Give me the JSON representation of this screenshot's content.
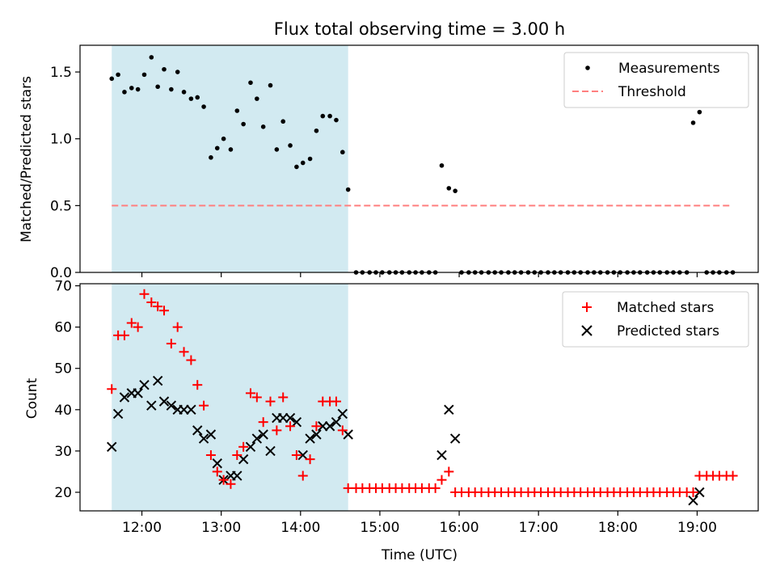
{
  "title": "Flux total observing time = 3.00 h",
  "colors": {
    "shade": "#add8e6",
    "threshold": "#ff7f7f",
    "matched": "#ff0000",
    "predicted": "#000000",
    "measurement": "#000000"
  },
  "chart_data": [
    {
      "type": "scatter",
      "ylabel": "Matched/Predicted stars",
      "xlim": [
        11.22,
        19.77
      ],
      "ylim": [
        0,
        1.7
      ],
      "yticks": [
        0.0,
        0.5,
        1.0,
        1.5
      ],
      "ytick_labels": [
        "0.0",
        "0.5",
        "1.0",
        "1.5"
      ],
      "shaded_span": [
        11.62,
        14.6
      ],
      "legend": {
        "placement": "upper right",
        "entries": [
          "Measurements",
          "Threshold"
        ]
      },
      "threshold": {
        "name": "Threshold",
        "y": 0.5,
        "x_range": [
          11.62,
          19.42
        ]
      },
      "series": [
        {
          "name": "Measurements",
          "points": [
            [
              11.62,
              1.45
            ],
            [
              11.7,
              1.48
            ],
            [
              11.78,
              1.35
            ],
            [
              11.87,
              1.38
            ],
            [
              11.95,
              1.37
            ],
            [
              12.03,
              1.48
            ],
            [
              12.12,
              1.61
            ],
            [
              12.2,
              1.39
            ],
            [
              12.28,
              1.52
            ],
            [
              12.37,
              1.37
            ],
            [
              12.45,
              1.5
            ],
            [
              12.53,
              1.35
            ],
            [
              12.62,
              1.3
            ],
            [
              12.7,
              1.31
            ],
            [
              12.78,
              1.24
            ],
            [
              12.87,
              0.86
            ],
            [
              12.95,
              0.93
            ],
            [
              13.03,
              1.0
            ],
            [
              13.12,
              0.92
            ],
            [
              13.2,
              1.21
            ],
            [
              13.28,
              1.11
            ],
            [
              13.37,
              1.42
            ],
            [
              13.45,
              1.3
            ],
            [
              13.53,
              1.09
            ],
            [
              13.62,
              1.4
            ],
            [
              13.7,
              0.92
            ],
            [
              13.78,
              1.13
            ],
            [
              13.87,
              0.95
            ],
            [
              13.95,
              0.79
            ],
            [
              14.03,
              0.82
            ],
            [
              14.12,
              0.85
            ],
            [
              14.2,
              1.06
            ],
            [
              14.28,
              1.17
            ],
            [
              14.37,
              1.17
            ],
            [
              14.45,
              1.14
            ],
            [
              14.53,
              0.9
            ],
            [
              14.6,
              0.62
            ],
            [
              14.7,
              0
            ],
            [
              14.78,
              0
            ],
            [
              14.87,
              0
            ],
            [
              14.95,
              0
            ],
            [
              15.03,
              0
            ],
            [
              15.12,
              0
            ],
            [
              15.2,
              0
            ],
            [
              15.28,
              0
            ],
            [
              15.37,
              0
            ],
            [
              15.45,
              0
            ],
            [
              15.53,
              0
            ],
            [
              15.62,
              0
            ],
            [
              15.7,
              0
            ],
            [
              15.78,
              0.8
            ],
            [
              15.87,
              0.63
            ],
            [
              15.95,
              0.61
            ],
            [
              16.03,
              0
            ],
            [
              16.12,
              0
            ],
            [
              16.2,
              0
            ],
            [
              16.28,
              0
            ],
            [
              16.37,
              0
            ],
            [
              16.45,
              0
            ],
            [
              16.53,
              0
            ],
            [
              16.62,
              0
            ],
            [
              16.7,
              0
            ],
            [
              16.78,
              0
            ],
            [
              16.87,
              0
            ],
            [
              16.95,
              0
            ],
            [
              17.03,
              0
            ],
            [
              17.12,
              0
            ],
            [
              17.2,
              0
            ],
            [
              17.28,
              0
            ],
            [
              17.37,
              0
            ],
            [
              17.45,
              0
            ],
            [
              17.53,
              0
            ],
            [
              17.62,
              0
            ],
            [
              17.7,
              0
            ],
            [
              17.78,
              0
            ],
            [
              17.87,
              0
            ],
            [
              17.95,
              0
            ],
            [
              18.03,
              0
            ],
            [
              18.12,
              0
            ],
            [
              18.2,
              0
            ],
            [
              18.28,
              0
            ],
            [
              18.37,
              0
            ],
            [
              18.45,
              0
            ],
            [
              18.53,
              0
            ],
            [
              18.62,
              0
            ],
            [
              18.7,
              0
            ],
            [
              18.78,
              0
            ],
            [
              18.87,
              0
            ],
            [
              18.95,
              1.12
            ],
            [
              19.03,
              1.2
            ],
            [
              19.12,
              0
            ],
            [
              19.2,
              0
            ],
            [
              19.28,
              0
            ],
            [
              19.37,
              0
            ],
            [
              19.45,
              0
            ]
          ]
        }
      ]
    },
    {
      "type": "scatter",
      "xlabel": "Time (UTC)",
      "ylabel": "Count",
      "xlim": [
        11.22,
        19.77
      ],
      "ylim": [
        15.5,
        70.5
      ],
      "xticks": [
        12,
        13,
        14,
        15,
        16,
        17,
        18,
        19
      ],
      "xtick_labels": [
        "12:00",
        "13:00",
        "14:00",
        "15:00",
        "16:00",
        "17:00",
        "18:00",
        "19:00"
      ],
      "yticks": [
        20,
        30,
        40,
        50,
        60,
        70
      ],
      "ytick_labels": [
        "20",
        "30",
        "40",
        "50",
        "60",
        "70"
      ],
      "shaded_span": [
        11.62,
        14.6
      ],
      "legend": {
        "placement": "upper right",
        "entries": [
          "Matched stars",
          "Predicted stars"
        ]
      },
      "series": [
        {
          "name": "Matched stars",
          "marker": "plus",
          "points": [
            [
              11.62,
              45
            ],
            [
              11.7,
              58
            ],
            [
              11.78,
              58
            ],
            [
              11.87,
              61
            ],
            [
              11.95,
              60
            ],
            [
              12.03,
              68
            ],
            [
              12.12,
              66
            ],
            [
              12.2,
              65
            ],
            [
              12.28,
              64
            ],
            [
              12.37,
              56
            ],
            [
              12.45,
              60
            ],
            [
              12.53,
              54
            ],
            [
              12.62,
              52
            ],
            [
              12.7,
              46
            ],
            [
              12.78,
              41
            ],
            [
              12.87,
              29
            ],
            [
              12.95,
              25
            ],
            [
              13.03,
              23
            ],
            [
              13.12,
              22
            ],
            [
              13.2,
              29
            ],
            [
              13.28,
              31
            ],
            [
              13.37,
              44
            ],
            [
              13.45,
              43
            ],
            [
              13.53,
              37
            ],
            [
              13.62,
              42
            ],
            [
              13.7,
              35
            ],
            [
              13.78,
              43
            ],
            [
              13.87,
              36
            ],
            [
              13.95,
              29
            ],
            [
              14.03,
              24
            ],
            [
              14.12,
              28
            ],
            [
              14.2,
              36
            ],
            [
              14.28,
              42
            ],
            [
              14.37,
              42
            ],
            [
              14.45,
              42
            ],
            [
              14.53,
              35
            ],
            [
              14.6,
              21
            ],
            [
              14.7,
              21
            ],
            [
              14.78,
              21
            ],
            [
              14.87,
              21
            ],
            [
              14.95,
              21
            ],
            [
              15.03,
              21
            ],
            [
              15.12,
              21
            ],
            [
              15.2,
              21
            ],
            [
              15.28,
              21
            ],
            [
              15.37,
              21
            ],
            [
              15.45,
              21
            ],
            [
              15.53,
              21
            ],
            [
              15.62,
              21
            ],
            [
              15.7,
              21
            ],
            [
              15.78,
              23
            ],
            [
              15.87,
              25
            ],
            [
              15.95,
              20
            ],
            [
              16.03,
              20
            ],
            [
              16.12,
              20
            ],
            [
              16.2,
              20
            ],
            [
              16.28,
              20
            ],
            [
              16.37,
              20
            ],
            [
              16.45,
              20
            ],
            [
              16.53,
              20
            ],
            [
              16.62,
              20
            ],
            [
              16.7,
              20
            ],
            [
              16.78,
              20
            ],
            [
              16.87,
              20
            ],
            [
              16.95,
              20
            ],
            [
              17.03,
              20
            ],
            [
              17.12,
              20
            ],
            [
              17.2,
              20
            ],
            [
              17.28,
              20
            ],
            [
              17.37,
              20
            ],
            [
              17.45,
              20
            ],
            [
              17.53,
              20
            ],
            [
              17.62,
              20
            ],
            [
              17.7,
              20
            ],
            [
              17.78,
              20
            ],
            [
              17.87,
              20
            ],
            [
              17.95,
              20
            ],
            [
              18.03,
              20
            ],
            [
              18.12,
              20
            ],
            [
              18.2,
              20
            ],
            [
              18.28,
              20
            ],
            [
              18.37,
              20
            ],
            [
              18.45,
              20
            ],
            [
              18.53,
              20
            ],
            [
              18.62,
              20
            ],
            [
              18.7,
              20
            ],
            [
              18.78,
              20
            ],
            [
              18.87,
              20
            ],
            [
              18.95,
              20
            ],
            [
              19.03,
              24
            ],
            [
              19.12,
              24
            ],
            [
              19.2,
              24
            ],
            [
              19.28,
              24
            ],
            [
              19.37,
              24
            ],
            [
              19.45,
              24
            ]
          ]
        },
        {
          "name": "Predicted stars",
          "marker": "x",
          "points": [
            [
              11.62,
              31
            ],
            [
              11.7,
              39
            ],
            [
              11.78,
              43
            ],
            [
              11.87,
              44
            ],
            [
              11.95,
              44
            ],
            [
              12.03,
              46
            ],
            [
              12.12,
              41
            ],
            [
              12.2,
              47
            ],
            [
              12.28,
              42
            ],
            [
              12.37,
              41
            ],
            [
              12.45,
              40
            ],
            [
              12.53,
              40
            ],
            [
              12.62,
              40
            ],
            [
              12.7,
              35
            ],
            [
              12.78,
              33
            ],
            [
              12.87,
              34
            ],
            [
              12.95,
              27
            ],
            [
              13.03,
              23
            ],
            [
              13.12,
              24
            ],
            [
              13.2,
              24
            ],
            [
              13.28,
              28
            ],
            [
              13.37,
              31
            ],
            [
              13.45,
              33
            ],
            [
              13.53,
              34
            ],
            [
              13.62,
              30
            ],
            [
              13.7,
              38
            ],
            [
              13.78,
              38
            ],
            [
              13.87,
              38
            ],
            [
              13.95,
              37
            ],
            [
              14.03,
              29
            ],
            [
              14.12,
              33
            ],
            [
              14.2,
              34
            ],
            [
              14.28,
              36
            ],
            [
              14.37,
              36
            ],
            [
              14.45,
              37
            ],
            [
              14.53,
              39
            ],
            [
              14.6,
              34
            ],
            [
              15.78,
              29
            ],
            [
              15.87,
              40
            ],
            [
              15.95,
              33
            ],
            [
              18.95,
              18
            ],
            [
              19.03,
              20
            ]
          ]
        }
      ]
    }
  ]
}
